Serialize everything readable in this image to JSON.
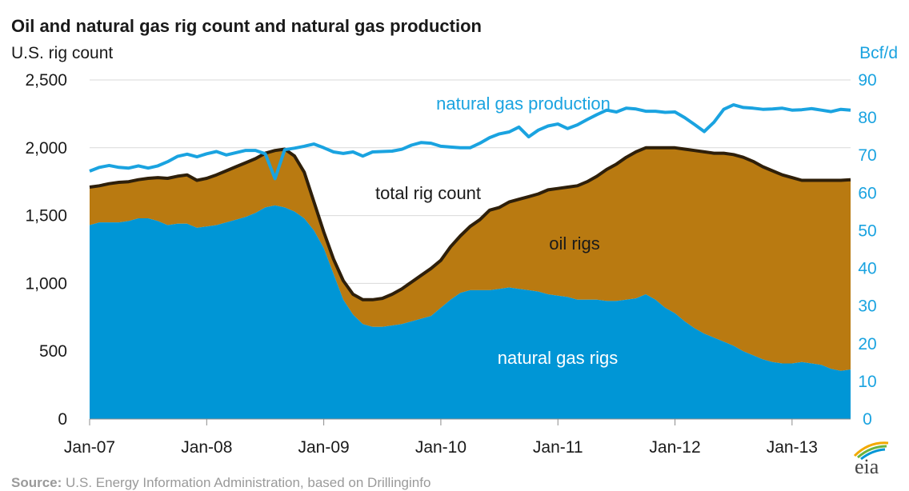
{
  "chart_data": {
    "type": "area",
    "title": "Oil and natural gas rig count and natural gas production",
    "ylabel": "U.S. rig count",
    "y2label": "Bcf/d",
    "ylim": [
      0,
      2500
    ],
    "y2lim": [
      0,
      90
    ],
    "yticks": [
      "0",
      "500",
      "1,000",
      "1,500",
      "2,000",
      "2,500"
    ],
    "y2ticks": [
      "0",
      "10",
      "20",
      "30",
      "40",
      "50",
      "60",
      "70",
      "80",
      "90"
    ],
    "xticks": [
      "Jan-07",
      "Jan-08",
      "Jan-09",
      "Jan-10",
      "Jan-11",
      "Jan-12",
      "Jan-13"
    ],
    "x": [
      "2007-01",
      "2007-02",
      "2007-03",
      "2007-04",
      "2007-05",
      "2007-06",
      "2007-07",
      "2007-08",
      "2007-09",
      "2007-10",
      "2007-11",
      "2007-12",
      "2008-01",
      "2008-02",
      "2008-03",
      "2008-04",
      "2008-05",
      "2008-06",
      "2008-07",
      "2008-08",
      "2008-09",
      "2008-10",
      "2008-11",
      "2008-12",
      "2009-01",
      "2009-02",
      "2009-03",
      "2009-04",
      "2009-05",
      "2009-06",
      "2009-07",
      "2009-08",
      "2009-09",
      "2009-10",
      "2009-11",
      "2009-12",
      "2010-01",
      "2010-02",
      "2010-03",
      "2010-04",
      "2010-05",
      "2010-06",
      "2010-07",
      "2010-08",
      "2010-09",
      "2010-10",
      "2010-11",
      "2010-12",
      "2011-01",
      "2011-02",
      "2011-03",
      "2011-04",
      "2011-05",
      "2011-06",
      "2011-07",
      "2011-08",
      "2011-09",
      "2011-10",
      "2011-11",
      "2011-12",
      "2012-01",
      "2012-02",
      "2012-03",
      "2012-04",
      "2012-05",
      "2012-06",
      "2012-07",
      "2012-08",
      "2012-09",
      "2012-10",
      "2012-11",
      "2012-12",
      "2013-01",
      "2013-02",
      "2013-03",
      "2013-04",
      "2013-05",
      "2013-06",
      "2013-07"
    ],
    "series": [
      {
        "name": "natural gas rigs",
        "color": "#0096d6",
        "values": [
          1430,
          1450,
          1450,
          1450,
          1460,
          1480,
          1480,
          1460,
          1430,
          1440,
          1440,
          1410,
          1420,
          1430,
          1450,
          1470,
          1490,
          1520,
          1560,
          1575,
          1560,
          1530,
          1480,
          1390,
          1260,
          1070,
          880,
          770,
          700,
          680,
          680,
          690,
          700,
          720,
          740,
          760,
          820,
          880,
          930,
          950,
          950,
          950,
          960,
          970,
          960,
          950,
          940,
          920,
          910,
          900,
          880,
          880,
          880,
          870,
          870,
          880,
          890,
          920,
          880,
          820,
          780,
          720,
          670,
          630,
          600,
          570,
          540,
          500,
          470,
          440,
          420,
          410,
          410,
          420,
          410,
          400,
          370,
          355,
          365
        ]
      },
      {
        "name": "total rig count",
        "color": "#2e1f0a",
        "values": [
          1710,
          1720,
          1735,
          1745,
          1750,
          1765,
          1775,
          1780,
          1775,
          1790,
          1800,
          1760,
          1775,
          1800,
          1830,
          1860,
          1890,
          1920,
          1960,
          1980,
          1990,
          1940,
          1820,
          1600,
          1380,
          1180,
          1020,
          920,
          880,
          880,
          890,
          920,
          960,
          1010,
          1060,
          1110,
          1170,
          1270,
          1350,
          1420,
          1470,
          1540,
          1560,
          1600,
          1620,
          1640,
          1660,
          1690,
          1700,
          1710,
          1720,
          1750,
          1790,
          1840,
          1880,
          1930,
          1970,
          2000,
          2000,
          2000,
          2000,
          1990,
          1980,
          1970,
          1960,
          1960,
          1950,
          1930,
          1900,
          1860,
          1830,
          1800,
          1780,
          1760,
          1760,
          1760,
          1760,
          1760,
          1765
        ]
      },
      {
        "name": "natural gas production",
        "axis": "right",
        "color": "#1aa3e0",
        "values": [
          65.8,
          66.8,
          67.3,
          66.8,
          66.6,
          67.2,
          66.6,
          67.2,
          68.3,
          69.7,
          70.3,
          69.6,
          70.4,
          71.0,
          70.1,
          70.7,
          71.3,
          71.3,
          70.4,
          63.8,
          71.5,
          71.9,
          72.4,
          73.0,
          72.0,
          70.9,
          70.5,
          70.9,
          69.8,
          70.9,
          71.0,
          71.1,
          71.6,
          72.7,
          73.4,
          73.2,
          72.4,
          72.2,
          72.0,
          72.0,
          73.2,
          74.7,
          75.7,
          76.2,
          77.5,
          74.9,
          76.7,
          77.8,
          78.3,
          77.1,
          78.1,
          79.5,
          80.8,
          82.0,
          81.5,
          82.5,
          82.3,
          81.7,
          81.7,
          81.4,
          81.5,
          80.0,
          78.2,
          76.3,
          78.8,
          82.2,
          83.4,
          82.7,
          82.5,
          82.2,
          82.3,
          82.5,
          82.0,
          82.1,
          82.4,
          82.0,
          81.6,
          82.2,
          82.0
        ]
      }
    ],
    "area_labels": {
      "oil": "oil rigs"
    },
    "legend": "inline"
  },
  "source": {
    "label": "Source:",
    "text": " U.S. Energy Information Administration, based on Drillinginfo"
  },
  "logo": {
    "text": "eia"
  }
}
